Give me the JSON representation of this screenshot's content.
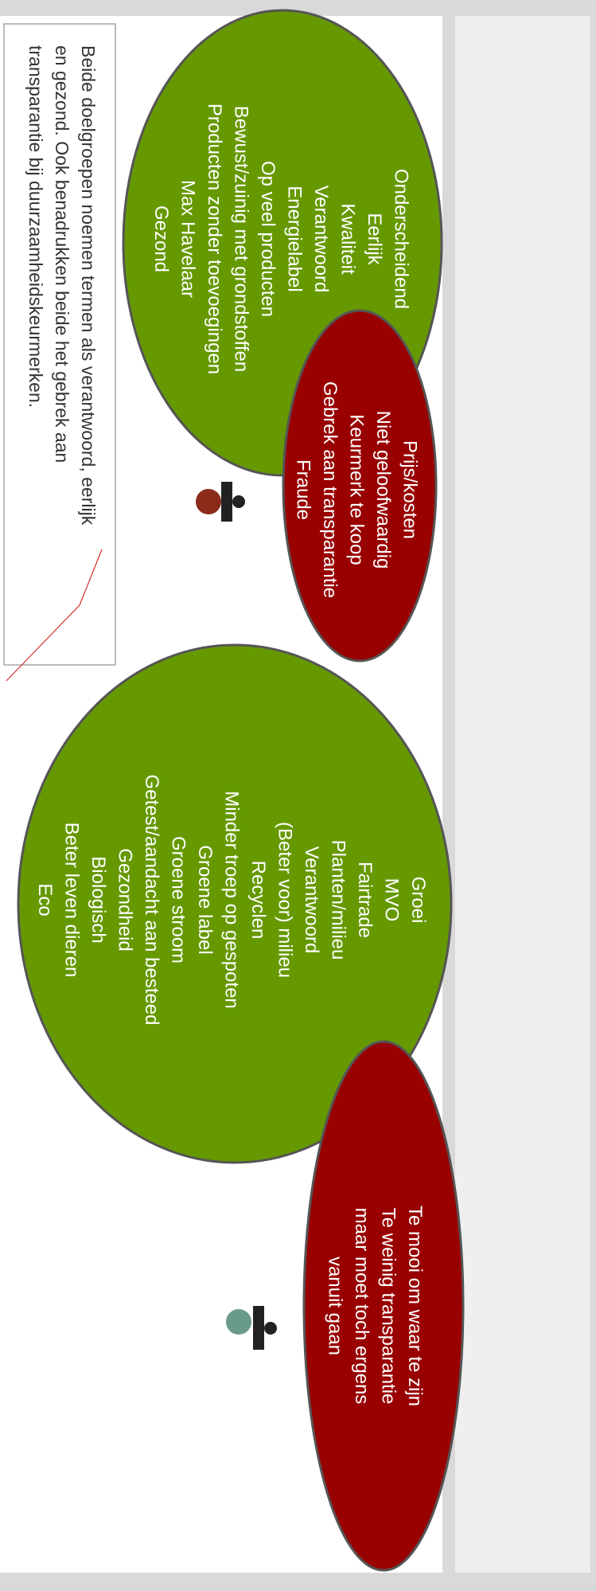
{
  "groups": [
    {
      "items": [
        "Onderscheidend",
        "Eerlijk",
        "Kwaliteit",
        "Verantwoord",
        "Energielabel",
        "Op veel producten",
        "Bewust/zuinig met grondstoffen",
        "Producten zonder toevoegingen",
        "Max Havelaar",
        "Gezond"
      ]
    },
    {
      "items": [
        "Prijs/kosten",
        "Niet geloofwaardig",
        "Keurmerk te koop",
        "Gebrek aan transparantie",
        "Fraude"
      ]
    },
    {
      "items": [
        "Groei",
        "MVO",
        "Fairtrade",
        "Planten/milieu",
        "Verantwoord",
        "(Beter voor) milieu",
        "Recyclen",
        "Minder troep op gespoten",
        "Groene label",
        "Groene stroom",
        "Getest/aandacht aan besteed",
        "Gezondheid",
        "Biologisch",
        "Beter leven dieren",
        "Eco"
      ]
    },
    {
      "items": [
        "Te mooi om waar te zijn",
        "Te weinig transparantie",
        "maar moet toch ergens",
        "vanuit gaan"
      ]
    }
  ],
  "note": {
    "lines": [
      "Beide doelgroepen noemen termen als verantwoord, eerlijk",
      "en gezond. Ook benadrukken beide het gebrek aan",
      "transparantie bij duurzaamheidskeurmerken."
    ]
  }
}
